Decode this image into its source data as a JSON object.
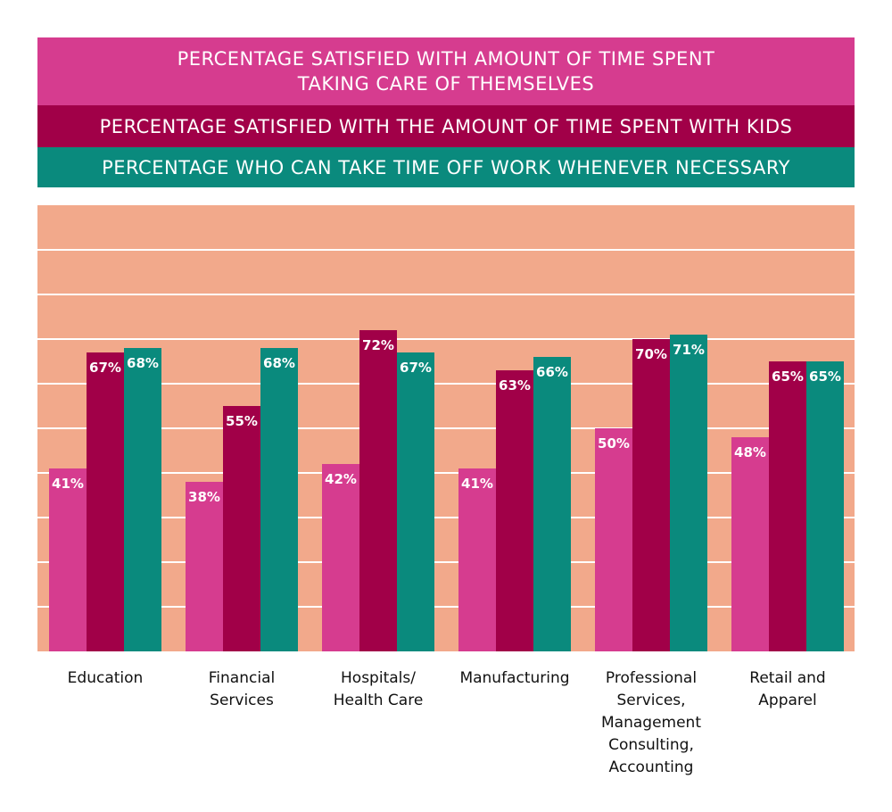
{
  "chart_data": {
    "type": "bar",
    "title": "",
    "xlabel": "",
    "ylabel": "",
    "ylim": [
      0,
      100
    ],
    "grid": true,
    "legend_placement": "top",
    "categories": [
      "Education",
      "Financial Services",
      "Hospitals/ Health Care",
      "Manufacturing",
      "Professional Services, Management Consulting, Accounting",
      "Retail and Apparel"
    ],
    "category_lines": [
      [
        "Education"
      ],
      [
        "Financial",
        "Services"
      ],
      [
        "Hospitals/",
        "Health Care"
      ],
      [
        "Manufacturing"
      ],
      [
        "Professional",
        "Services,",
        "Management",
        "Consulting,",
        "Accounting"
      ],
      [
        "Retail and",
        "Apparel"
      ]
    ],
    "series": [
      {
        "name": "PERCENTAGE SATISFIED WITH AMOUNT OF TIME SPENT TAKING CARE OF THEMSELVES",
        "name_lines": [
          "PERCENTAGE SATISFIED WITH AMOUNT OF TIME SPENT",
          "TAKING CARE OF THEMSELVES"
        ],
        "color": "#d63c8f",
        "values": [
          41,
          38,
          42,
          41,
          50,
          48
        ]
      },
      {
        "name": "PERCENTAGE SATISFIED WITH THE AMOUNT OF TIME SPENT WITH KIDS",
        "name_lines": [
          "PERCENTAGE SATISFIED WITH THE AMOUNT OF TIME SPENT WITH KIDS"
        ],
        "color": "#a10048",
        "values": [
          67,
          55,
          72,
          63,
          70,
          65
        ]
      },
      {
        "name": "PERCENTAGE WHO CAN TAKE TIME OFF WORK WHENEVER NECESSARY",
        "name_lines": [
          "PERCENTAGE WHO CAN TAKE TIME OFF WORK WHENEVER NECESSARY"
        ],
        "color": "#0a8a7d",
        "values": [
          68,
          68,
          67,
          66,
          71,
          65
        ]
      }
    ],
    "value_suffix": "%",
    "plot_background": "#f2a98b"
  }
}
